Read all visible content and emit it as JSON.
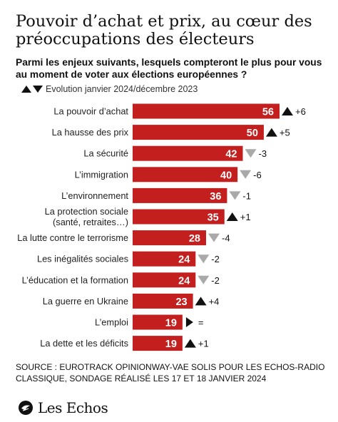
{
  "title": "Pouvoir d’achat et prix, au cœur des préoccupations des électeurs",
  "subtitle": "Parmi les enjeux suivants, lesquels compteront le plus pour vous au moment de voter aux élections européennes ?",
  "legend_label": "Evolution janvier 2024/décembre 2023",
  "source": "SOURCE : EUROTRACK OPINIONWAY-VAE SOLIS POUR LES ECHOS-RADIO CLASSIQUE, SONDAGE RÉALISÉ LES 17 ET 18 JANVIER 2024",
  "brand": "Les Echos",
  "colors": {
    "bar": "#c41f1f",
    "up": "#111111",
    "down": "#a9a9a9",
    "equal": "#111111",
    "text": "#222222"
  },
  "chart_data": {
    "type": "bar",
    "orientation": "horizontal",
    "categories": [
      [
        "La pouvoir d’achat"
      ],
      [
        "La hausse des prix"
      ],
      [
        "La sécurité"
      ],
      [
        "L’immigration"
      ],
      [
        "L’environnement"
      ],
      [
        "La protection sociale",
        "(santé, retraites…)"
      ],
      [
        "La lutte contre le terrorisme"
      ],
      [
        "Les inégalités sociales"
      ],
      [
        "L’éducation et la formation"
      ],
      [
        "La guerre en Ukraine"
      ],
      [
        "L’emploi"
      ],
      [
        "La dette et les déficits"
      ]
    ],
    "values": [
      56,
      50,
      42,
      40,
      36,
      35,
      28,
      24,
      24,
      23,
      19,
      19
    ],
    "changes": [
      {
        "dir": "up",
        "label": "+6"
      },
      {
        "dir": "up",
        "label": "+5"
      },
      {
        "dir": "down",
        "label": "-3"
      },
      {
        "dir": "down",
        "label": "-6"
      },
      {
        "dir": "down",
        "label": "-1"
      },
      {
        "dir": "up",
        "label": "+1"
      },
      {
        "dir": "down",
        "label": "-4"
      },
      {
        "dir": "down",
        "label": "-2"
      },
      {
        "dir": "down",
        "label": "-2"
      },
      {
        "dir": "up",
        "label": "+4"
      },
      {
        "dir": "equal",
        "label": "="
      },
      {
        "dir": "up",
        "label": "+1"
      }
    ],
    "xlim": [
      0,
      56
    ],
    "grid": false,
    "legend": "top-left"
  }
}
